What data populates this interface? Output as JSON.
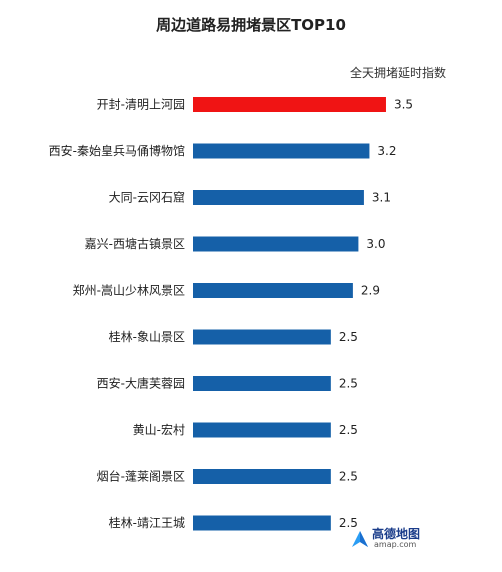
{
  "chart_data": {
    "type": "bar",
    "orientation": "horizontal",
    "title": "周边道路易拥堵景区TOP10",
    "series_label": "全天拥堵延时指数",
    "categories": [
      "开封-清明上河园",
      "西安-秦始皇兵马俑博物馆",
      "大同-云冈石窟",
      "嘉兴-西塘古镇景区",
      "郑州-嵩山少林风景区",
      "桂林-象山景区",
      "西安-大唐芙蓉园",
      "黄山-宏村",
      "烟台-蓬莱阁景区",
      "桂林-靖江王城"
    ],
    "values": [
      3.5,
      3.2,
      3.1,
      3.0,
      2.9,
      2.5,
      2.5,
      2.5,
      2.5,
      2.5
    ],
    "value_labels": [
      "3.5",
      "3.2",
      "3.1",
      "3.0",
      "2.9",
      "2.5",
      "2.5",
      "2.5",
      "2.5",
      "2.5"
    ],
    "highlight_index": 0,
    "colors": {
      "highlight": "#f01414",
      "default": "#1560a8"
    },
    "xlim": [
      0,
      3.7
    ],
    "grid": false
  },
  "logo": {
    "name": "高德地图",
    "url_text": "amap.com",
    "icon": "amap-logo-icon"
  }
}
